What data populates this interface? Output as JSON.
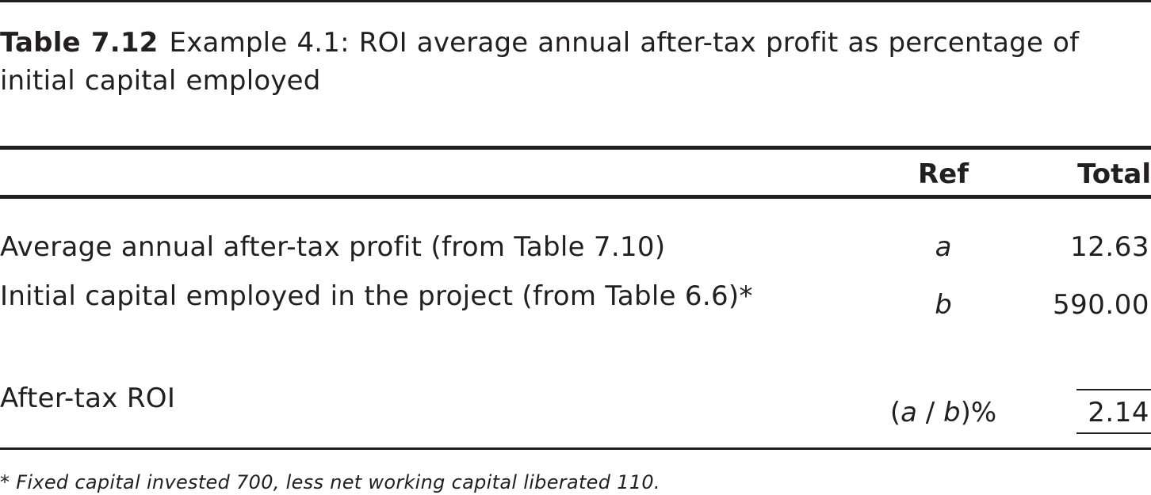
{
  "caption": {
    "label": "Table 7.12",
    "text": "Example 4.1: ROI average annual after-tax profit as percentage of initial capital employed"
  },
  "table": {
    "headers": {
      "ref": "Ref",
      "total": "Total"
    },
    "rows": [
      {
        "label": "Average annual after-tax profit (from Table 7.10)",
        "ref": "a",
        "total": "12.63"
      },
      {
        "label": "Initial capital employed in the project (from Table 6.6)*",
        "ref": "b",
        "total": "590.00"
      }
    ],
    "result": {
      "label": "After-tax ROI",
      "ref_open": "(",
      "ref_a": "a",
      "ref_sep": " / ",
      "ref_b": "b",
      "ref_close": ")%",
      "total": "2.14"
    }
  },
  "footnote": {
    "marker": "*",
    "text": " Fixed capital invested 700, less net working capital liberated 110."
  }
}
